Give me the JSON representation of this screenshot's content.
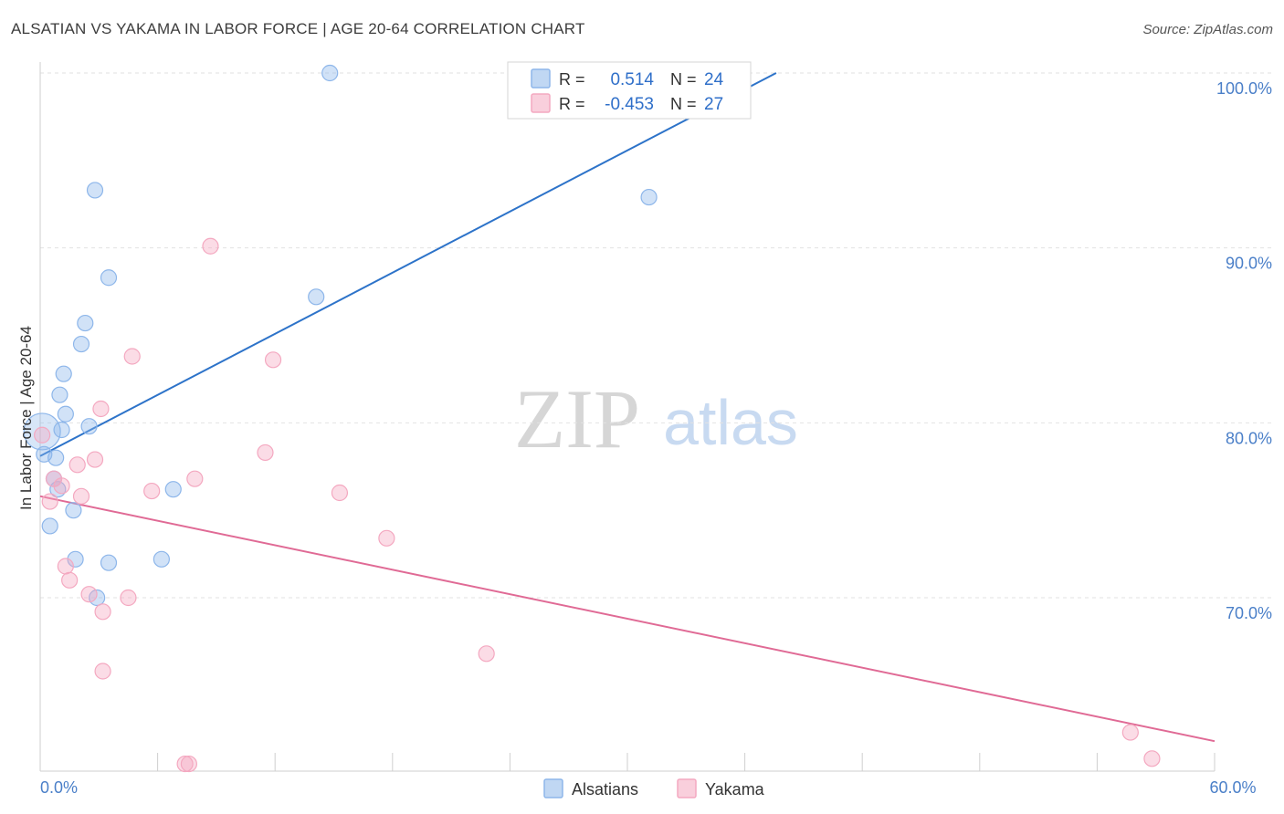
{
  "header": {
    "title": "ALSATIAN VS YAKAMA IN LABOR FORCE | AGE 20-64 CORRELATION CHART",
    "source": "Source: ZipAtlas.com"
  },
  "watermark": {
    "zip": "ZIP",
    "atlas": "atlas"
  },
  "chart_data": {
    "type": "scatter",
    "title": "ALSATIAN VS YAKAMA IN LABOR FORCE | AGE 20-64 CORRELATION CHART",
    "ylabel": "In Labor Force | Age 20-64",
    "xlabel": "",
    "xlim": [
      0,
      60
    ],
    "ylim": [
      60.5,
      101
    ],
    "x_tick_labels": [
      {
        "value": 0,
        "label": "0.0%"
      },
      {
        "value": 60,
        "label": "60.0%"
      }
    ],
    "y_tick_labels": [
      {
        "value": 100,
        "label": "100.0%"
      },
      {
        "value": 90,
        "label": "90.0%"
      },
      {
        "value": 80,
        "label": "80.0%"
      },
      {
        "value": 70,
        "label": "70.0%"
      }
    ],
    "grid": true,
    "legend_position": "top-center",
    "stats": [
      {
        "r_label": "R =",
        "r": "0.514",
        "n_label": "N =",
        "n": "24"
      },
      {
        "r_label": "R =",
        "r": "-0.453",
        "n_label": "N =",
        "n": "27"
      }
    ],
    "series": [
      {
        "name": "Alsatians",
        "color": "#8db6ea",
        "line_color": "#2d73c9",
        "r": 0.514,
        "n": 24,
        "trend": {
          "x": [
            0,
            37.6
          ],
          "y": [
            78.1,
            100
          ]
        },
        "points": [
          [
            0.1,
            79.5
          ],
          [
            0.2,
            78.2
          ],
          [
            0.8,
            78.0
          ],
          [
            0.7,
            76.8
          ],
          [
            0.9,
            76.2
          ],
          [
            0.5,
            74.1
          ],
          [
            1.7,
            75.0
          ],
          [
            1.1,
            79.6
          ],
          [
            1.3,
            80.5
          ],
          [
            1.0,
            81.6
          ],
          [
            1.2,
            82.8
          ],
          [
            2.1,
            84.5
          ],
          [
            2.3,
            85.7
          ],
          [
            2.5,
            79.8
          ],
          [
            3.5,
            72.0
          ],
          [
            1.8,
            72.2
          ],
          [
            2.9,
            70.0
          ],
          [
            3.5,
            88.3
          ],
          [
            2.8,
            93.3
          ],
          [
            6.8,
            76.2
          ],
          [
            6.2,
            72.2
          ],
          [
            14.8,
            100.0
          ],
          [
            14.1,
            87.2
          ],
          [
            31.1,
            92.9
          ]
        ]
      },
      {
        "name": "Yakama",
        "color": "#f4a8c0",
        "line_color": "#e06a95",
        "r": -0.453,
        "n": 27,
        "trend": {
          "x": [
            0,
            60
          ],
          "y": [
            75.8,
            61.8
          ]
        },
        "points": [
          [
            0.1,
            79.3
          ],
          [
            0.5,
            75.5
          ],
          [
            0.7,
            76.8
          ],
          [
            1.1,
            76.4
          ],
          [
            1.3,
            71.8
          ],
          [
            1.5,
            71.0
          ],
          [
            1.9,
            77.6
          ],
          [
            2.1,
            75.8
          ],
          [
            2.5,
            70.2
          ],
          [
            2.8,
            77.9
          ],
          [
            3.1,
            80.8
          ],
          [
            3.2,
            69.2
          ],
          [
            3.2,
            65.8
          ],
          [
            4.5,
            70.0
          ],
          [
            4.7,
            83.8
          ],
          [
            5.7,
            76.1
          ],
          [
            7.4,
            60.5
          ],
          [
            7.6,
            60.5
          ],
          [
            7.9,
            76.8
          ],
          [
            8.7,
            90.1
          ],
          [
            11.5,
            78.3
          ],
          [
            11.9,
            83.6
          ],
          [
            15.3,
            76.0
          ],
          [
            17.7,
            73.4
          ],
          [
            22.8,
            66.8
          ],
          [
            55.7,
            62.3
          ],
          [
            56.8,
            60.8
          ]
        ]
      }
    ]
  }
}
